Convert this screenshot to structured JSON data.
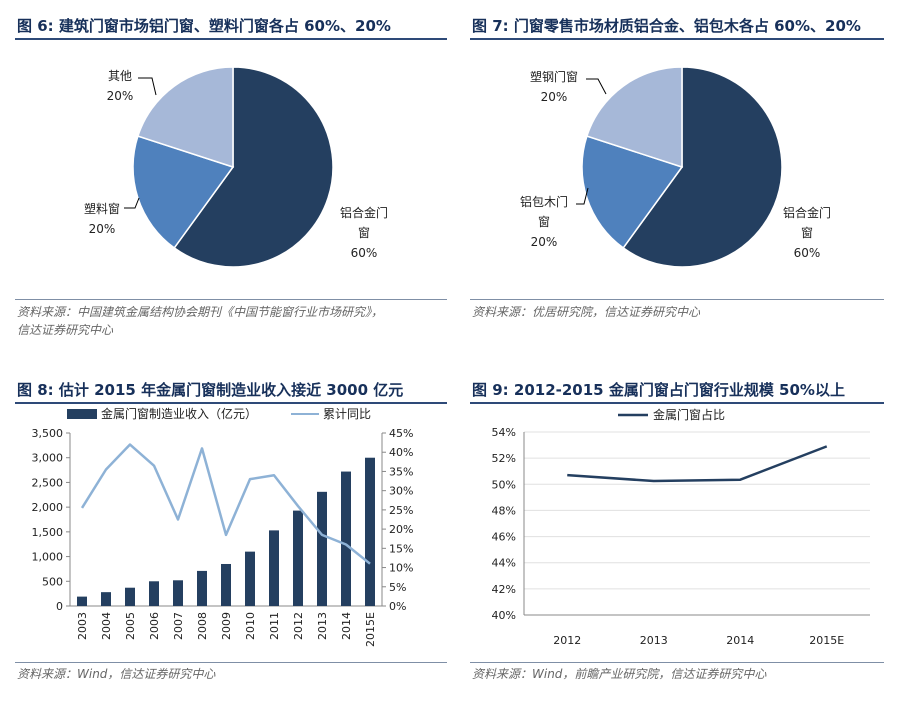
{
  "fig6": {
    "title": "图 6:  建筑门窗市场铝门窗、塑料门窗各占 60%、20%",
    "source_line1": "资料来源：中国建筑金属结构协会期刊《中国节能窗行业市场研究》，",
    "source_line2": "信达证券研究中心",
    "labels": [
      {
        "name1": "铝合金门",
        "name2": "窗",
        "pct": "60%"
      },
      {
        "name1": "塑料窗",
        "name2": "",
        "pct": "20%"
      },
      {
        "name1": "其他",
        "name2": "",
        "pct": "20%"
      }
    ]
  },
  "fig7": {
    "title": "图 7:  门窗零售市场材质铝合金、铝包木各占 60%、20%",
    "source": "资料来源：优居研究院，信达证券研究中心",
    "labels": [
      {
        "name1": "铝合金门",
        "name2": "窗",
        "pct": "60%"
      },
      {
        "name1": "铝包木门",
        "name2": "窗",
        "pct": "20%"
      },
      {
        "name1": "塑钢门窗",
        "name2": "",
        "pct": "20%"
      }
    ]
  },
  "fig8": {
    "title": "图 8:  估计 2015 年金属门窗制造业收入接近 3000 亿元",
    "source": "资料来源：Wind，信达证券研究中心",
    "legend_bar": "金属门窗制造业收入（亿元）",
    "legend_line": "累计同比",
    "left_ticks": [
      "0",
      "500",
      "1,000",
      "1,500",
      "2,000",
      "2,500",
      "3,000",
      "3,500"
    ],
    "right_ticks": [
      "0%",
      "5%",
      "10%",
      "15%",
      "20%",
      "25%",
      "30%",
      "35%",
      "40%",
      "45%"
    ]
  },
  "fig9": {
    "title": "图 9:  2012-2015 金属门窗占门窗行业规模 50%以上",
    "source": "资料来源：Wind，前瞻产业研究院，信达证券研究中心",
    "legend": "金属门窗占比",
    "ticks": [
      "40%",
      "42%",
      "44%",
      "46%",
      "48%",
      "50%",
      "52%",
      "54%"
    ]
  },
  "colors": {
    "dark_navy": "#243f60",
    "mid_blue": "#4f81bd",
    "light_blue": "#a6b8d8",
    "line_light": "#8eb2d6",
    "title_rule": "#2e4a78"
  },
  "chart_data": [
    {
      "type": "pie",
      "categories": [
        "铝合金门窗",
        "塑料窗",
        "其他"
      ],
      "values": [
        60,
        20,
        20
      ]
    },
    {
      "type": "pie",
      "categories": [
        "铝合金门窗",
        "铝包木门窗",
        "塑钢门窗"
      ],
      "values": [
        60,
        20,
        20
      ]
    },
    {
      "type": "bar",
      "categories": [
        "2003",
        "2004",
        "2005",
        "2006",
        "2007",
        "2008",
        "2009",
        "2010",
        "2011",
        "2012",
        "2013",
        "2014",
        "2015E"
      ],
      "series": [
        {
          "name": "金属门窗制造业收入（亿元）",
          "values": [
            190,
            280,
            370,
            500,
            520,
            710,
            850,
            1100,
            1530,
            1930,
            2310,
            2720,
            3000
          ]
        },
        {
          "name": "累计同比",
          "values": [
            25.5,
            35.5,
            42,
            36.5,
            22.5,
            41,
            18.5,
            33,
            34,
            26,
            18.5,
            16,
            11
          ]
        }
      ],
      "ylim": [
        0,
        3500
      ],
      "y2lim": [
        0,
        45
      ]
    },
    {
      "type": "line",
      "categories": [
        "2012",
        "2013",
        "2014",
        "2015E"
      ],
      "series": [
        {
          "name": "金属门窗占比",
          "values": [
            50.7,
            50.25,
            50.35,
            52.9
          ]
        }
      ],
      "ylim": [
        40,
        54
      ]
    }
  ]
}
